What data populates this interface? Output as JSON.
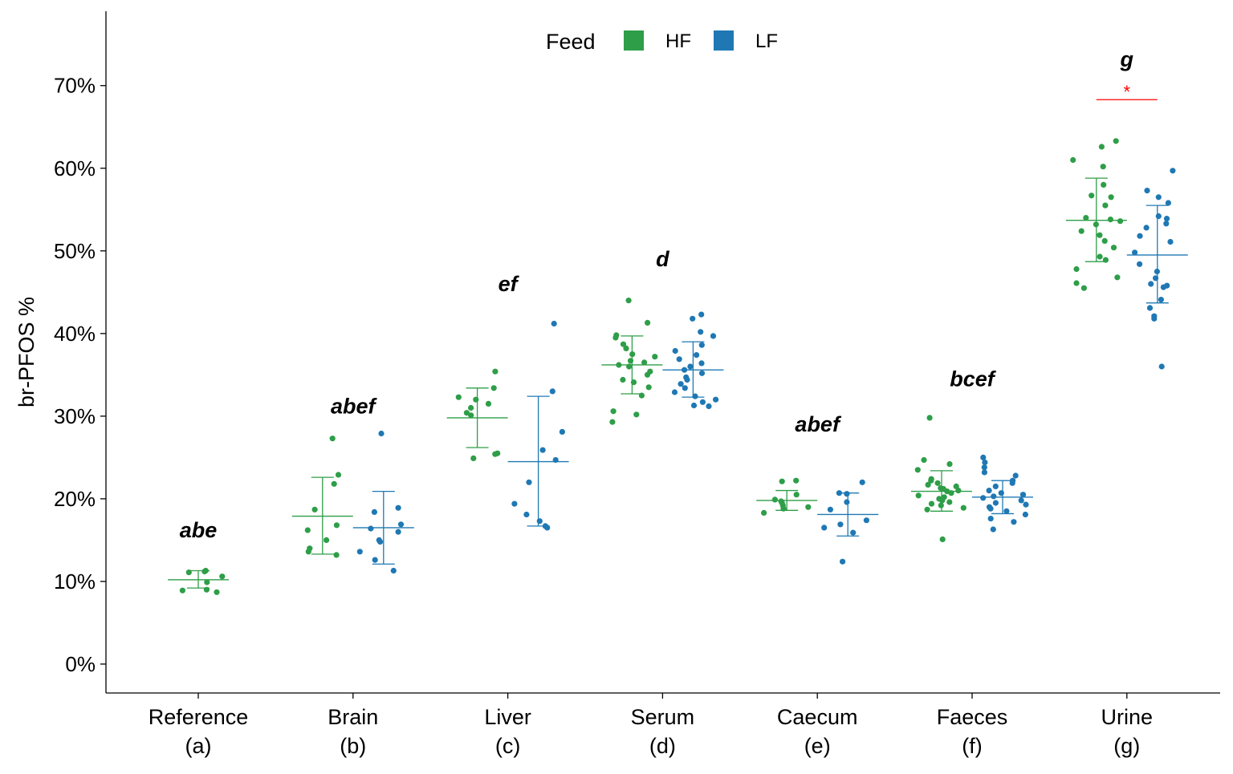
{
  "chart_data": {
    "type": "scatter",
    "ylabel": "br-PFOS %",
    "ylim": [
      -3.5,
      79
    ],
    "y_ticks": [
      0,
      10,
      20,
      30,
      40,
      50,
      60,
      70
    ],
    "y_tick_format": "percent",
    "categories": [
      {
        "name": "Reference",
        "code": "(a)",
        "letters": "abe"
      },
      {
        "name": "Brain",
        "code": "(b)",
        "letters": "abef"
      },
      {
        "name": "Liver",
        "code": "(c)",
        "letters": "ef"
      },
      {
        "name": "Serum",
        "code": "(d)",
        "letters": "d"
      },
      {
        "name": "Caecum",
        "code": "(e)",
        "letters": "abef"
      },
      {
        "name": "Faeces",
        "code": "(f)",
        "letters": "bcef"
      },
      {
        "name": "Urine",
        "code": "(g)",
        "letters": "g"
      }
    ],
    "letter_heights": [
      16.2,
      31.2,
      46.0,
      49.0,
      29.0,
      34.5,
      73.2
    ],
    "legend": {
      "title": "Feed",
      "placement": "top-center"
    },
    "series": [
      {
        "name": "HF",
        "color": "#2e9e48",
        "groups": [
          {
            "category": "Reference",
            "mean": 10.2,
            "sd_low": 9.2,
            "sd_high": 11.3,
            "points": [
              11.3,
              11.1,
              11.2,
              10.6,
              9.9,
              9.0,
              8.9,
              8.7
            ]
          },
          {
            "category": "Brain",
            "mean": 17.9,
            "sd_low": 13.3,
            "sd_high": 22.6,
            "points": [
              27.3,
              22.9,
              21.8,
              18.7,
              16.8,
              16.2,
              15.0,
              14.0,
              13.6,
              13.2
            ]
          },
          {
            "category": "Liver",
            "mean": 29.8,
            "sd_low": 26.2,
            "sd_high": 33.4,
            "points": [
              35.4,
              33.4,
              32.3,
              32.0,
              31.5,
              31.0,
              30.4,
              30.1,
              25.5,
              25.4,
              24.9
            ]
          },
          {
            "category": "Serum",
            "mean": 36.2,
            "sd_low": 32.7,
            "sd_high": 39.7,
            "points": [
              44.0,
              41.3,
              39.8,
              39.5,
              38.7,
              38.2,
              37.5,
              37.2,
              36.7,
              36.5,
              36.2,
              36.0,
              35.4,
              35.0,
              34.4,
              34.1,
              33.5,
              32.5,
              30.6,
              30.2,
              29.3
            ]
          },
          {
            "category": "Caecum",
            "mean": 19.8,
            "sd_low": 18.6,
            "sd_high": 21.0,
            "points": [
              22.2,
              22.1,
              20.5,
              19.9,
              19.7,
              19.5,
              19.2,
              19.0,
              18.8,
              18.3
            ]
          },
          {
            "category": "Faeces",
            "mean": 20.9,
            "sd_low": 18.5,
            "sd_high": 23.4,
            "points": [
              29.8,
              24.7,
              24.2,
              23.5,
              22.4,
              22.2,
              21.9,
              21.7,
              21.5,
              21.3,
              21.2,
              21.0,
              20.9,
              20.7,
              20.4,
              20.2,
              20.0,
              19.8,
              19.6,
              19.4,
              19.2,
              18.9,
              18.7,
              15.1
            ]
          },
          {
            "category": "Urine",
            "mean": 53.7,
            "sd_low": 48.7,
            "sd_high": 58.8,
            "points": [
              63.3,
              62.6,
              61.0,
              60.2,
              58.0,
              56.7,
              56.5,
              55.5,
              54.0,
              53.8,
              53.6,
              53.2,
              52.4,
              51.9,
              51.2,
              50.4,
              49.3,
              48.9,
              47.8,
              46.8,
              46.1,
              45.5
            ]
          }
        ]
      },
      {
        "name": "LF",
        "color": "#1f78b4",
        "groups": [
          {
            "category": "Brain",
            "mean": 16.5,
            "sd_low": 12.1,
            "sd_high": 20.9,
            "points": [
              27.9,
              18.9,
              18.4,
              16.9,
              16.4,
              16.0,
              15.0,
              14.8,
              13.6,
              12.6,
              11.3
            ]
          },
          {
            "category": "Liver",
            "mean": 24.5,
            "sd_low": 16.7,
            "sd_high": 32.4,
            "points": [
              41.2,
              33.0,
              28.1,
              25.9,
              24.7,
              22.0,
              19.4,
              18.1,
              17.3,
              16.7,
              16.5
            ]
          },
          {
            "category": "Serum",
            "mean": 35.6,
            "sd_low": 32.3,
            "sd_high": 39.0,
            "points": [
              42.3,
              41.8,
              40.2,
              39.7,
              38.6,
              37.9,
              37.4,
              36.9,
              36.4,
              36.0,
              35.6,
              35.2,
              34.7,
              34.4,
              33.9,
              33.4,
              32.9,
              32.4,
              32.0,
              31.7,
              31.3,
              31.2
            ]
          },
          {
            "category": "Caecum",
            "mean": 18.1,
            "sd_low": 15.5,
            "sd_high": 20.7,
            "points": [
              22.0,
              20.7,
              20.6,
              19.6,
              18.7,
              17.4,
              16.9,
              16.5,
              15.9,
              12.4
            ]
          },
          {
            "category": "Faeces",
            "mean": 20.2,
            "sd_low": 18.2,
            "sd_high": 22.2,
            "points": [
              25.0,
              24.4,
              23.8,
              23.2,
              22.8,
              22.2,
              21.9,
              21.5,
              21.0,
              20.7,
              20.5,
              20.3,
              20.1,
              19.8,
              19.5,
              19.3,
              19.0,
              18.8,
              18.5,
              18.1,
              17.6,
              17.2,
              16.3
            ]
          },
          {
            "category": "Urine",
            "mean": 49.5,
            "sd_low": 43.7,
            "sd_high": 55.5,
            "points": [
              59.7,
              57.3,
              56.5,
              55.8,
              54.2,
              53.9,
              53.3,
              52.8,
              51.8,
              51.1,
              49.8,
              48.4,
              47.5,
              46.7,
              46.0,
              45.8,
              45.6,
              44.1,
              43.1,
              42.1,
              41.8,
              36.0
            ]
          }
        ]
      }
    ],
    "annotations": [
      {
        "category": "Urine",
        "text": "*",
        "y": 68.3,
        "color": "#ff0000"
      }
    ]
  }
}
